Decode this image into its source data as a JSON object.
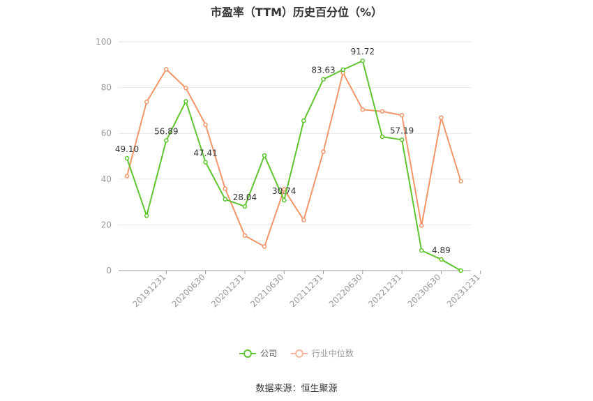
{
  "chart_data": {
    "type": "line",
    "title": "市盈率（TTM）历史百分位（%）",
    "ylim": [
      0,
      100
    ],
    "y_ticks": [
      "0",
      "20",
      "40",
      "60",
      "80",
      "100"
    ],
    "x_tick_labels": [
      "20191231",
      "20200630",
      "20201231",
      "20210630",
      "20211231",
      "20220630",
      "20221231",
      "20230630",
      "20231231"
    ],
    "series": [
      {
        "name": "公司",
        "color": "#5ec42f",
        "values": [
          49.1,
          24.0,
          56.89,
          74.0,
          47.41,
          31.2,
          28.04,
          50.3,
          30.74,
          65.5,
          83.63,
          87.8,
          91.72,
          58.5,
          57.19,
          8.8,
          4.89,
          0.0
        ],
        "labels": {
          "0": "49.10",
          "2": "56.89",
          "4": "47.41",
          "6": "28.04",
          "8": "30.74",
          "10": "83.63",
          "12": "91.72",
          "14": "57.19",
          "16": "4.89"
        }
      },
      {
        "name": "行业中位数",
        "color": "#f39568",
        "values": [
          41.3,
          73.7,
          88.0,
          79.8,
          63.8,
          35.8,
          15.3,
          10.5,
          35.5,
          22.1,
          52.0,
          86.5,
          70.4,
          69.6,
          67.9,
          19.7,
          66.9,
          39.1
        ]
      }
    ],
    "legend_position": "bottom",
    "grid": true
  },
  "source_text": "数据来源：恒生聚源"
}
